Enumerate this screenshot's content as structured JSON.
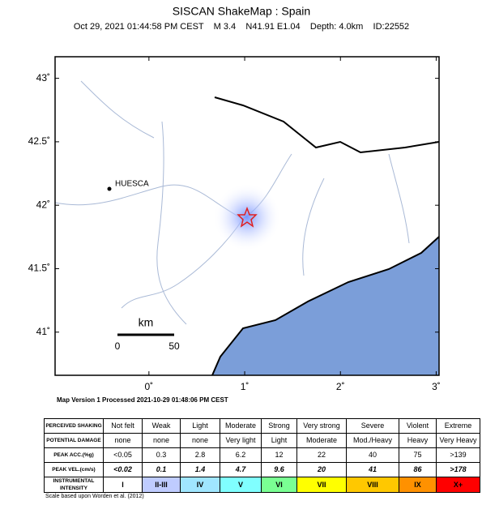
{
  "header": {
    "title": "SISCAN ShakeMap : Spain",
    "subtitle": "Oct 29, 2021 01:44:58 PM CEST    M 3.4    N41.91 E1.04    Depth: 4.0km    ID:22552"
  },
  "map": {
    "xlim": [
      -0.98,
      3.03
    ],
    "ylim": [
      40.66,
      43.17
    ],
    "xticks": [
      {
        "value": 0,
        "label": "0˚"
      },
      {
        "value": 1,
        "label": "1˚"
      },
      {
        "value": 2,
        "label": "2˚"
      },
      {
        "value": 3,
        "label": "3˚"
      }
    ],
    "yticks": [
      {
        "value": 41,
        "label": "41˚"
      },
      {
        "value": 41.5,
        "label": "41.5˚"
      },
      {
        "value": 42,
        "label": "42˚"
      },
      {
        "value": 42.5,
        "label": "42.5˚"
      },
      {
        "value": 43,
        "label": "43˚"
      }
    ],
    "city": "HUESCA",
    "scale": {
      "unit": "km",
      "labels": [
        "0",
        "50"
      ]
    }
  },
  "footer": "Map Version 1 Processed 2021-10-29 01:48:06 PM CEST",
  "table": {
    "rows": [
      [
        "PERCEIVED SHAKING",
        "Not felt",
        "Weak",
        "Light",
        "Moderate",
        "Strong",
        "Very strong",
        "Severe",
        "Violent",
        "Extreme"
      ],
      [
        "POTENTIAL DAMAGE",
        "none",
        "none",
        "none",
        "Very light",
        "Light",
        "Moderate",
        "Mod./Heavy",
        "Heavy",
        "Very Heavy"
      ],
      [
        "PEAK ACC.(%g)",
        "<0.05",
        "0.3",
        "2.8",
        "6.2",
        "12",
        "22",
        "40",
        "75",
        ">139"
      ],
      [
        "PEAK VEL.(cm/s)",
        "<0.02",
        "0.1",
        "1.4",
        "4.7",
        "9.6",
        "20",
        "41",
        "86",
        ">178"
      ],
      [
        "INSTRUMENTAL INTENSITY",
        "I",
        "II-III",
        "IV",
        "V",
        "VI",
        "VII",
        "VIII",
        "IX",
        "X+"
      ]
    ]
  },
  "note": "Scale based upon Worden et al. (2012)"
}
